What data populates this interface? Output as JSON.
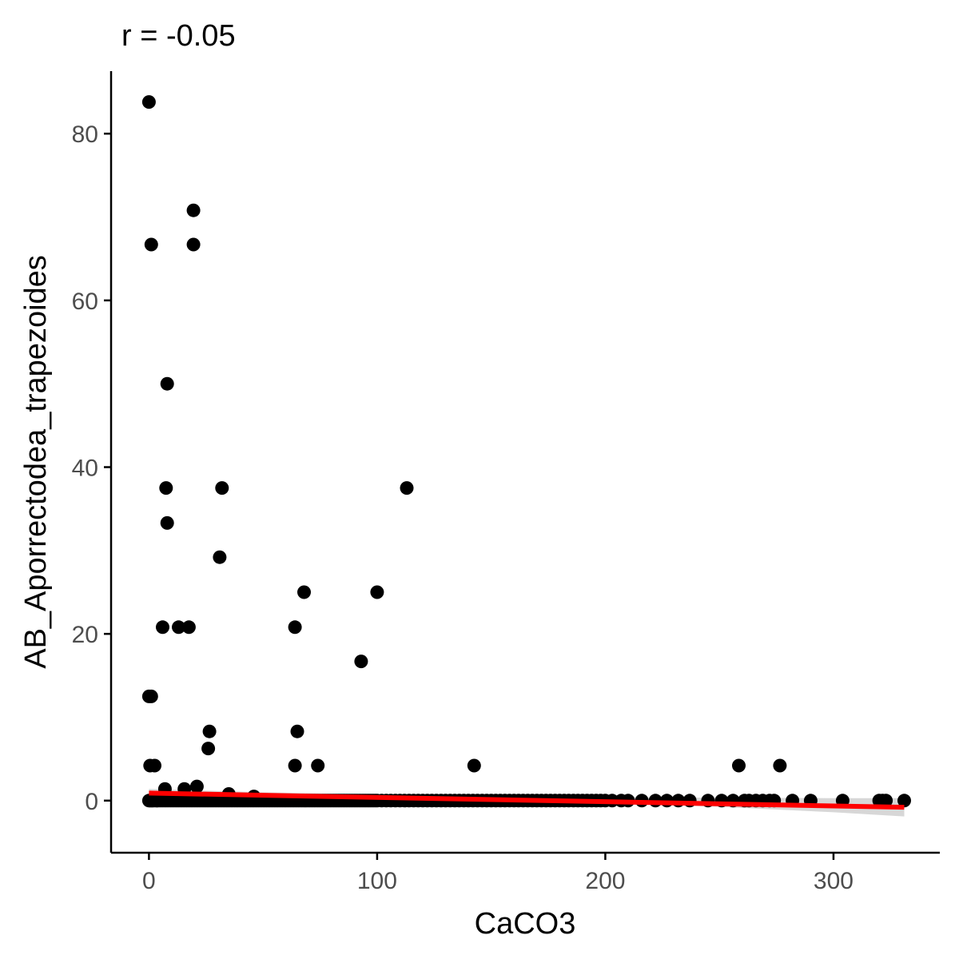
{
  "chart_data": {
    "type": "scatter",
    "title": "r = -0.05",
    "xlabel": "CaCO3",
    "ylabel": "AB_Aporrectodea_trapezoides",
    "xlim": [
      -16.6,
      346.6
    ],
    "ylim": [
      -6.25,
      87.5
    ],
    "xticks": [
      0,
      100,
      200,
      300
    ],
    "yticks": [
      0,
      20,
      40,
      60,
      80
    ],
    "grid": false,
    "legend": "none",
    "colors": {
      "points": "#000000",
      "fit_line": "#ff0000",
      "confidence_band": "#d3d3d3",
      "axis": "#000000",
      "tick_label": "#4d4d4d"
    },
    "points": [
      [
        0,
        83.8
      ],
      [
        1,
        66.7
      ],
      [
        19.5,
        70.8
      ],
      [
        19.5,
        66.7
      ],
      [
        8,
        50
      ],
      [
        7.5,
        37.5
      ],
      [
        32,
        37.5
      ],
      [
        113,
        37.5
      ],
      [
        8,
        33.3
      ],
      [
        31,
        29.2
      ],
      [
        68,
        25
      ],
      [
        100,
        25
      ],
      [
        6,
        20.8
      ],
      [
        13,
        20.8
      ],
      [
        17.5,
        20.8
      ],
      [
        64,
        20.8
      ],
      [
        93,
        16.7
      ],
      [
        0,
        12.5
      ],
      [
        1,
        12.5
      ],
      [
        26.5,
        8.3
      ],
      [
        65,
        8.3
      ],
      [
        26,
        6.25
      ],
      [
        0.5,
        4.2
      ],
      [
        2.5,
        4.2
      ],
      [
        64,
        4.2
      ],
      [
        74,
        4.2
      ],
      [
        142.5,
        4.2
      ],
      [
        258.5,
        4.2
      ],
      [
        276.5,
        4.2
      ],
      [
        7,
        1.4
      ],
      [
        15.5,
        1.4
      ],
      [
        21,
        1.7
      ],
      [
        35,
        0.8
      ],
      [
        46,
        0.5
      ],
      [
        0,
        0
      ],
      [
        0.5,
        0
      ],
      [
        1,
        0
      ],
      [
        1.5,
        0
      ],
      [
        2,
        0
      ],
      [
        3,
        0
      ],
      [
        3.5,
        0
      ],
      [
        4,
        0
      ],
      [
        5,
        0
      ],
      [
        6,
        0
      ],
      [
        7,
        0
      ],
      [
        8,
        0
      ],
      [
        9,
        0
      ],
      [
        10,
        0
      ],
      [
        11,
        0
      ],
      [
        12,
        0
      ],
      [
        13,
        0
      ],
      [
        14,
        0
      ],
      [
        15,
        0
      ],
      [
        16,
        0
      ],
      [
        17,
        0
      ],
      [
        18,
        0
      ],
      [
        19,
        0
      ],
      [
        20,
        0
      ],
      [
        21,
        0
      ],
      [
        22,
        0
      ],
      [
        23,
        0
      ],
      [
        24,
        0
      ],
      [
        25,
        0
      ],
      [
        26,
        0
      ],
      [
        27,
        0
      ],
      [
        28,
        0
      ],
      [
        29,
        0
      ],
      [
        30,
        0
      ],
      [
        31,
        0
      ],
      [
        32,
        0
      ],
      [
        33,
        0
      ],
      [
        34,
        0
      ],
      [
        35,
        0
      ],
      [
        36,
        0
      ],
      [
        37,
        0
      ],
      [
        38,
        0
      ],
      [
        39,
        0
      ],
      [
        40,
        0
      ],
      [
        41,
        0
      ],
      [
        42,
        0
      ],
      [
        43,
        0
      ],
      [
        44,
        0
      ],
      [
        45,
        0
      ],
      [
        46,
        0
      ],
      [
        47,
        0
      ],
      [
        48,
        0
      ],
      [
        49,
        0
      ],
      [
        50,
        0
      ],
      [
        51,
        0
      ],
      [
        52,
        0
      ],
      [
        53,
        0
      ],
      [
        54,
        0
      ],
      [
        55,
        0
      ],
      [
        56,
        0
      ],
      [
        57,
        0
      ],
      [
        58,
        0
      ],
      [
        59,
        0
      ],
      [
        60,
        0
      ],
      [
        61,
        0
      ],
      [
        62,
        0
      ],
      [
        63,
        0
      ],
      [
        64,
        0
      ],
      [
        65,
        0
      ],
      [
        66,
        0
      ],
      [
        67,
        0
      ],
      [
        68,
        0
      ],
      [
        69,
        0
      ],
      [
        70,
        0
      ],
      [
        71,
        0
      ],
      [
        72,
        0
      ],
      [
        73,
        0
      ],
      [
        74,
        0
      ],
      [
        75,
        0
      ],
      [
        76,
        0
      ],
      [
        77,
        0
      ],
      [
        78,
        0
      ],
      [
        79,
        0
      ],
      [
        80,
        0
      ],
      [
        81,
        0
      ],
      [
        82,
        0
      ],
      [
        83,
        0
      ],
      [
        84,
        0
      ],
      [
        85,
        0
      ],
      [
        86,
        0
      ],
      [
        87,
        0
      ],
      [
        88,
        0
      ],
      [
        89,
        0
      ],
      [
        90,
        0
      ],
      [
        91,
        0
      ],
      [
        92,
        0
      ],
      [
        93,
        0
      ],
      [
        94,
        0
      ],
      [
        95,
        0
      ],
      [
        96,
        0
      ],
      [
        97,
        0
      ],
      [
        98,
        0
      ],
      [
        99,
        0
      ],
      [
        100,
        0
      ],
      [
        102,
        0
      ],
      [
        104,
        0
      ],
      [
        106,
        0
      ],
      [
        108,
        0
      ],
      [
        110,
        0
      ],
      [
        112,
        0
      ],
      [
        114,
        0
      ],
      [
        116,
        0
      ],
      [
        118,
        0
      ],
      [
        120,
        0
      ],
      [
        122,
        0
      ],
      [
        124,
        0
      ],
      [
        126,
        0
      ],
      [
        128,
        0
      ],
      [
        130,
        0
      ],
      [
        132,
        0
      ],
      [
        134,
        0
      ],
      [
        136,
        0
      ],
      [
        138,
        0
      ],
      [
        140,
        0
      ],
      [
        142,
        0
      ],
      [
        144,
        0
      ],
      [
        146,
        0
      ],
      [
        148,
        0
      ],
      [
        150,
        0
      ],
      [
        152,
        0
      ],
      [
        154,
        0
      ],
      [
        156,
        0
      ],
      [
        158,
        0
      ],
      [
        160,
        0
      ],
      [
        162,
        0
      ],
      [
        164,
        0
      ],
      [
        166,
        0
      ],
      [
        168,
        0
      ],
      [
        170,
        0
      ],
      [
        172,
        0
      ],
      [
        174,
        0
      ],
      [
        176,
        0
      ],
      [
        178,
        0
      ],
      [
        180,
        0
      ],
      [
        182,
        0
      ],
      [
        184,
        0
      ],
      [
        186,
        0
      ],
      [
        188,
        0
      ],
      [
        190,
        0
      ],
      [
        192,
        0
      ],
      [
        194,
        0
      ],
      [
        196,
        0
      ],
      [
        198,
        0
      ],
      [
        200,
        0
      ],
      [
        203,
        0
      ],
      [
        207,
        0
      ],
      [
        210,
        0
      ],
      [
        216,
        0
      ],
      [
        222,
        0
      ],
      [
        227,
        0
      ],
      [
        232,
        0
      ],
      [
        237,
        0
      ],
      [
        245,
        0
      ],
      [
        251,
        0
      ],
      [
        256,
        0
      ],
      [
        261,
        0
      ],
      [
        263,
        0
      ],
      [
        266,
        0
      ],
      [
        269,
        0
      ],
      [
        272,
        0
      ],
      [
        274,
        0
      ],
      [
        282,
        0
      ],
      [
        290,
        0
      ],
      [
        304,
        0
      ],
      [
        320,
        0
      ],
      [
        321.5,
        0
      ],
      [
        323,
        0
      ],
      [
        331,
        0
      ]
    ],
    "fit_line": {
      "x": [
        0,
        331
      ],
      "y": [
        0.9,
        -0.8
      ]
    },
    "confidence_band": {
      "x": [
        0,
        50,
        100,
        150,
        200,
        250,
        300,
        331
      ],
      "upper": [
        1.4,
        1.0,
        0.75,
        0.55,
        0.4,
        0.35,
        0.3,
        0.3
      ],
      "lower": [
        0.4,
        0.35,
        0.2,
        0.0,
        -0.25,
        -0.75,
        -1.4,
        -1.9
      ]
    }
  }
}
